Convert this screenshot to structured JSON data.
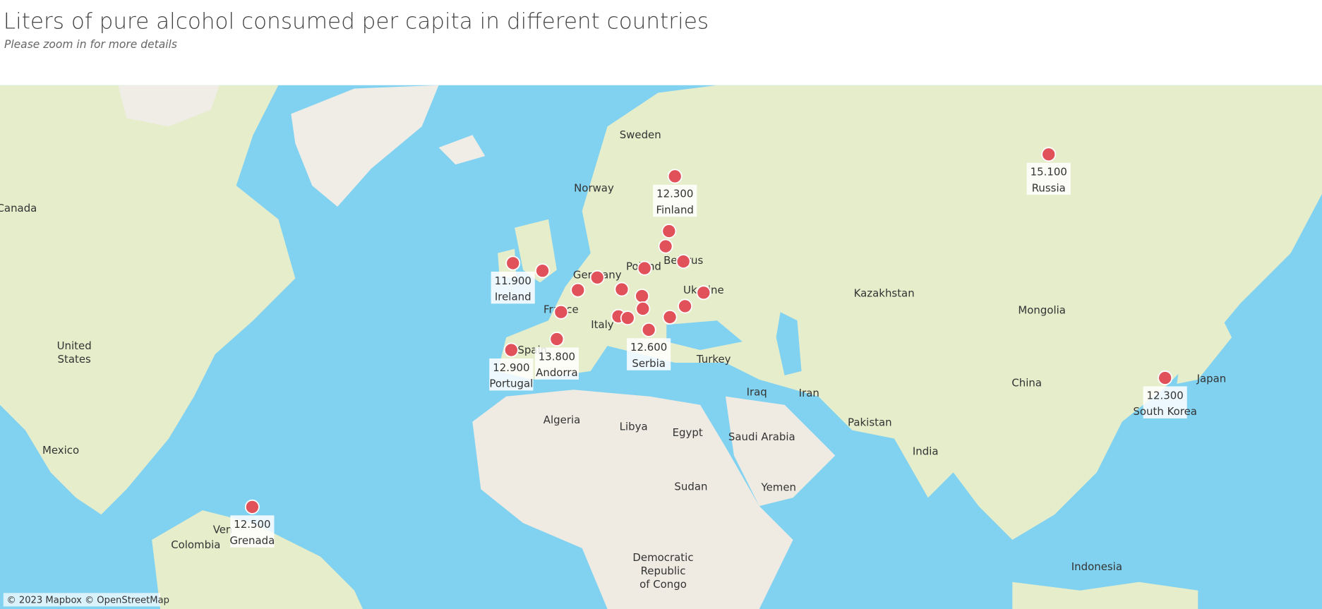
{
  "chart_data": {
    "type": "map",
    "title": "Liters of pure alcohol consumed per capita in different countries",
    "subtitle": "Please zoom in for more details",
    "categories": [
      "Russia",
      "Finland",
      "Ireland",
      "Andorra",
      "Portugal",
      "Serbia",
      "South Korea",
      "Grenada"
    ],
    "values": [
      15.1,
      12.3,
      11.9,
      13.8,
      12.9,
      12.6,
      12.3,
      12.5
    ],
    "value_labels": [
      "15.100",
      "12.300",
      "11.900",
      "13.800",
      "12.900",
      "12.600",
      "12.300",
      "12.500"
    ],
    "color": "#e05159",
    "places": [
      "Sweden",
      "Norway",
      "Canada",
      "United States",
      "Mexico",
      "Colombia",
      "Ven",
      "Kazakhstan",
      "Mongolia",
      "China",
      "Japan",
      "Iran",
      "Iraq",
      "Turkey",
      "Pakistan",
      "India",
      "Saudi Arabia",
      "Yemen",
      "Egypt",
      "Libya",
      "Algeria",
      "Sudan",
      "Democratic Republic of Congo",
      "Indonesia",
      "Germany",
      "Poland",
      "Belarus",
      "Ukraine",
      "France",
      "Italy",
      "Spain"
    ],
    "attribution": "© 2023 Mapbox © OpenStreetMap"
  }
}
